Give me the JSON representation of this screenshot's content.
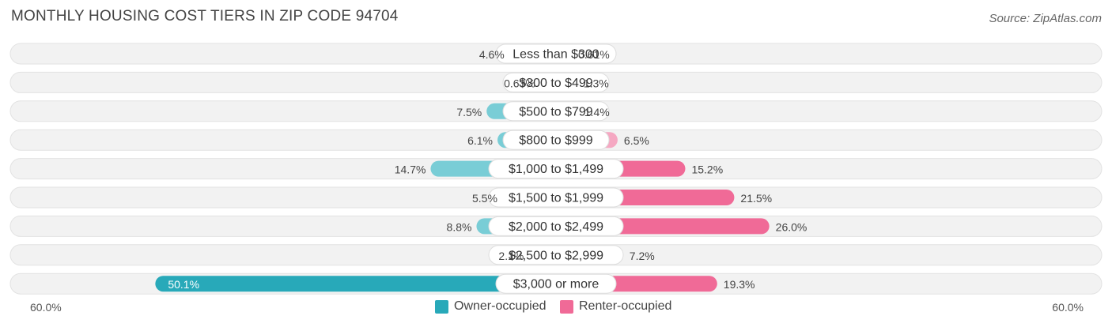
{
  "title": "MONTHLY HOUSING COST TIERS IN ZIP CODE 94704",
  "source": "Source: ZipAtlas.com",
  "colors": {
    "owner": "#79cdd6",
    "owner_strong": "#28a9b9",
    "renter": "#f5a8c2",
    "renter_strong": "#f06a97",
    "track": "#f2f2f2"
  },
  "legend": {
    "owner_label": "Owner-occupied",
    "renter_label": "Renter-occupied"
  },
  "axis": {
    "left_label": "60.0%",
    "right_label": "60.0%"
  },
  "chart_data": {
    "type": "bar",
    "orientation": "horizontal-diverging",
    "xlim": [
      -60,
      60
    ],
    "categories": [
      "Less than $300",
      "$300 to $499",
      "$500 to $799",
      "$800 to $999",
      "$1,000 to $1,499",
      "$1,500 to $1,999",
      "$2,000 to $2,499",
      "$2,500 to $2,999",
      "$3,000 or more"
    ],
    "series": [
      {
        "name": "Owner-occupied",
        "values": [
          4.6,
          0.63,
          7.5,
          6.1,
          14.7,
          5.5,
          8.8,
          2.1,
          50.1
        ],
        "labels": [
          "4.6%",
          "0.63%",
          "7.5%",
          "6.1%",
          "14.7%",
          "5.5%",
          "8.8%",
          "2.1%",
          "50.1%"
        ]
      },
      {
        "name": "Renter-occupied",
        "values": [
          0.61,
          1.3,
          1.4,
          6.5,
          15.2,
          21.5,
          26.0,
          7.2,
          19.3
        ],
        "labels": [
          "0.61%",
          "1.3%",
          "1.4%",
          "6.5%",
          "15.2%",
          "21.5%",
          "26.0%",
          "7.2%",
          "19.3%"
        ]
      }
    ]
  }
}
